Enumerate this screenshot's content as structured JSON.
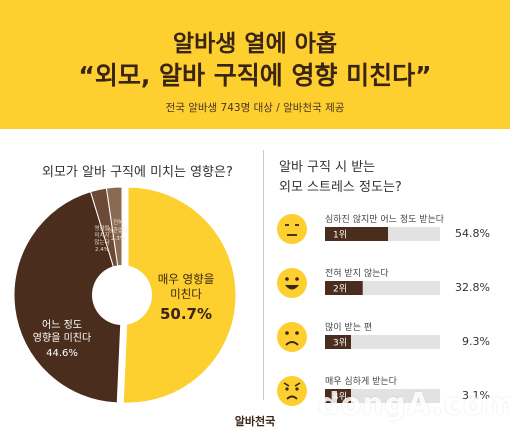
{
  "header": {
    "title_line1": "알바생 열에 아홉",
    "title_line2": "“외모, 알바 구직에 영향 미친다”",
    "subtitle": "전국 알바생 743명 대상 / 알바천국 제공"
  },
  "left_panel": {
    "question": "외모가 알바 구직에 미치는 영향은?"
  },
  "right_panel": {
    "question_line1": "알바 구직 시 받는",
    "question_line2": "외모 스트레스 정도는?"
  },
  "colors": {
    "accent": "#fdcf2f",
    "dark_brown": "#4a2d1c",
    "mid_brown": "#6d4a35",
    "light_brown": "#8b6a52",
    "text_dark": "#3a2416",
    "bar_bg": "#e2e2e2"
  },
  "chart_data": [
    {
      "type": "pie",
      "title": "외모가 알바 구직에 미치는 영향은?",
      "slices": [
        {
          "label": "매우 영향을 미친다",
          "value": 50.7,
          "display": "50.7%",
          "color": "#fdcf2f"
        },
        {
          "label": "어느 정도 영향을 미친다",
          "value": 44.6,
          "display": "44.6%",
          "color": "#4a2d1c"
        },
        {
          "label": "전혀 영향을 미치지 않는다",
          "value": 2.4,
          "display": "2.4%",
          "color": "#6d4a35"
        },
        {
          "label": "전혀 상관없다",
          "value": 2.3,
          "display": "2.3%",
          "color": "#8b6a52"
        }
      ]
    },
    {
      "type": "bar",
      "title": "알바 구직 시 받는 외모 스트레스 정도는?",
      "rows": [
        {
          "rank": "1위",
          "label": "심하진 않지만 어느 정도 받는다",
          "value": 54.8,
          "display": "54.8%",
          "face": "neutral-face-icon"
        },
        {
          "rank": "2위",
          "label": "전혀 받지 않는다",
          "value": 32.8,
          "display": "32.8%",
          "face": "smile-face-icon"
        },
        {
          "rank": "3위",
          "label": "많이 받는 편",
          "value": 9.3,
          "display": "9.3%",
          "face": "frown-face-icon"
        },
        {
          "rank": "4위",
          "label": "매우 심하게 받는다",
          "value": 3.1,
          "display": "3.1%",
          "face": "angry-face-icon"
        }
      ]
    }
  ],
  "pie_labels": {
    "big_line1": "매우 영향을",
    "big_line2": "미친다",
    "big_pct": "50.7%",
    "mid_line1": "어느 정도",
    "mid_line2": "영향을 미친다",
    "mid_pct": "44.6%",
    "s3_l1": "영향을",
    "s3_l2": "미치지",
    "s3_l3": "않는다",
    "s3_pct": "2.4%",
    "s4_l1": "전혀",
    "s4_l2": "상관없다",
    "s4_pct": "2.3%"
  },
  "footer": {
    "logo": "알바천국"
  },
  "watermark": "dongA.com"
}
